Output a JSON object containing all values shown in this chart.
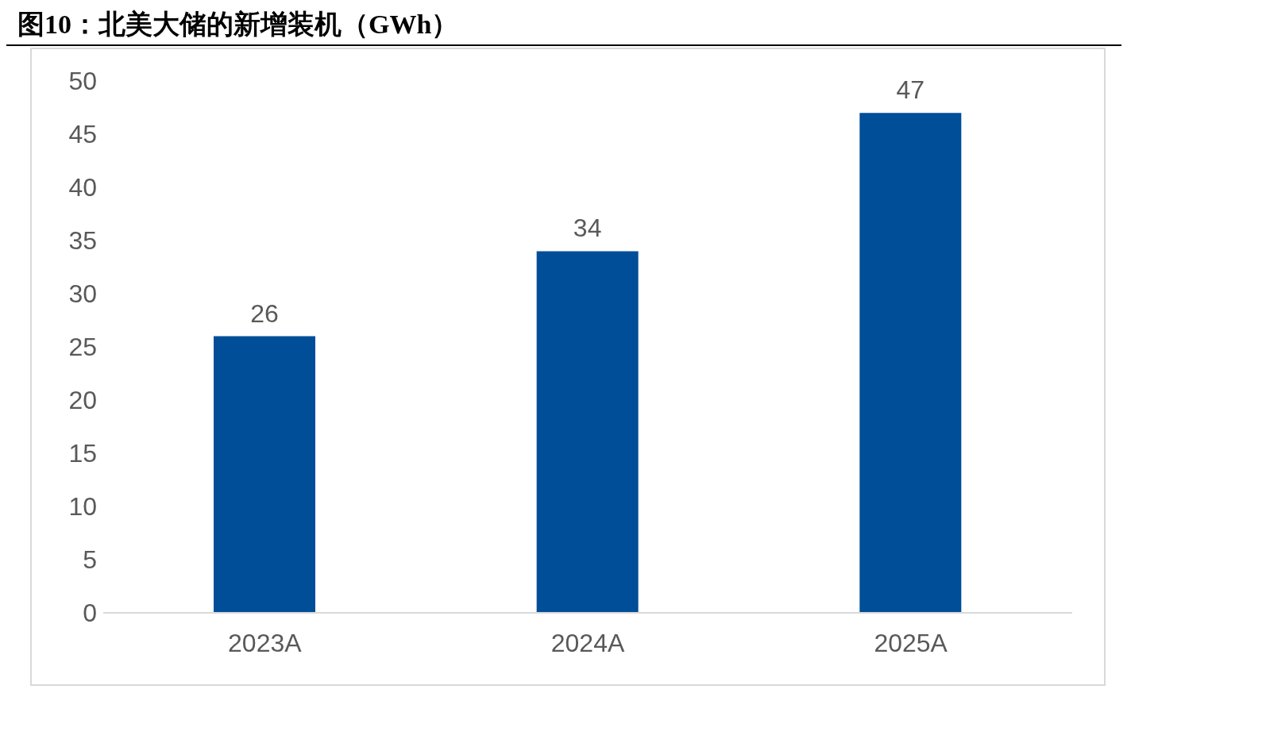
{
  "chart_data": {
    "type": "bar",
    "title": "图10：北美大储的新增装机（GWh）",
    "categories": [
      "2023A",
      "2024A",
      "2025A"
    ],
    "values": [
      26,
      34,
      47
    ],
    "color": "#004e98",
    "ylim": [
      0,
      50
    ],
    "yticks": [
      0,
      5,
      10,
      15,
      20,
      25,
      30,
      35,
      40,
      45,
      50
    ],
    "grid": false,
    "data_labels": true
  }
}
